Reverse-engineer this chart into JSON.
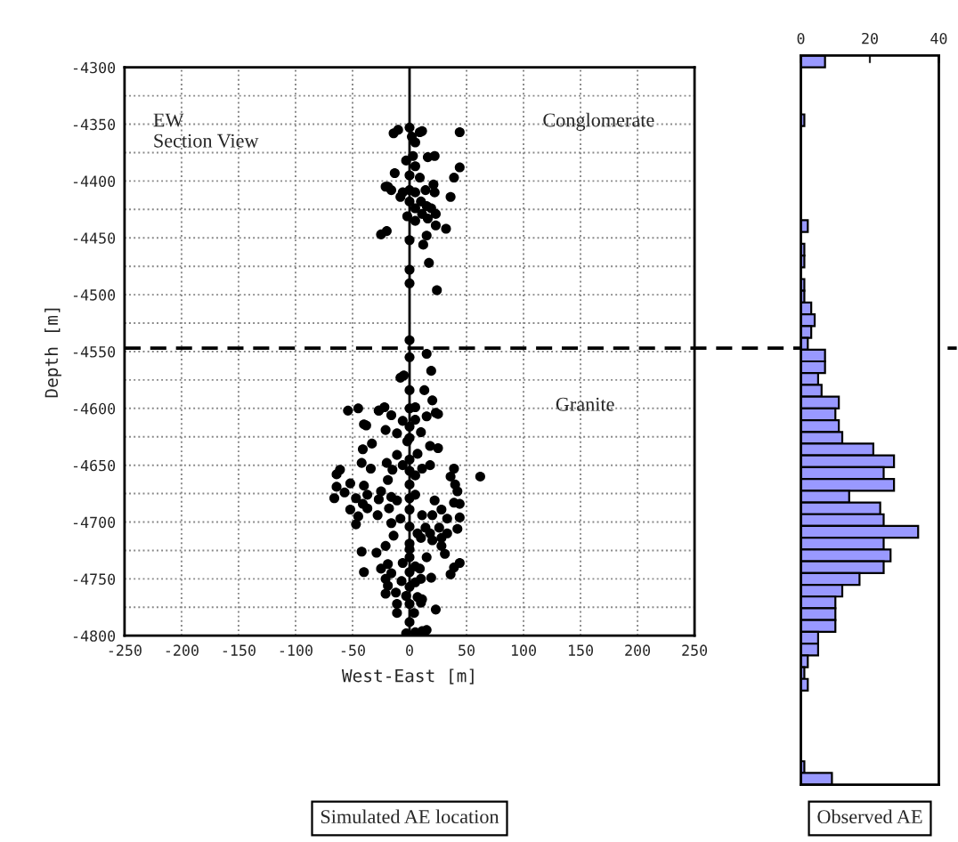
{
  "chart_data": [
    {
      "type": "scatter",
      "xlabel": "West-East [m]",
      "ylabel": "Depth [m]",
      "x": [
        -14,
        -10,
        0,
        2,
        9,
        11,
        5,
        44,
        -3,
        3,
        5,
        16,
        22,
        44,
        39,
        -13,
        0,
        9,
        -19,
        -16,
        -21,
        -6,
        0,
        5,
        14,
        21,
        22,
        36,
        -8,
        0,
        10,
        15,
        5,
        19,
        -2,
        11,
        23,
        16,
        5,
        23,
        32,
        -25,
        -20,
        15,
        0,
        12,
        17,
        0,
        0,
        24,
        0,
        0,
        15,
        19,
        -8,
        -5,
        0,
        13,
        20,
        -54,
        -45,
        -27,
        -22,
        0,
        5,
        23,
        -40,
        25,
        15,
        -27,
        -16,
        5,
        -6,
        0,
        -38,
        -21,
        -11,
        0,
        10,
        -2,
        -33,
        -41,
        18,
        25,
        -11,
        7,
        0,
        -61,
        -64,
        -42,
        -34,
        -20,
        -15,
        -6,
        0,
        11,
        18,
        39,
        62,
        36,
        5,
        -52,
        -40,
        -19,
        0,
        40,
        42,
        -64,
        -57,
        -47,
        -37,
        -25,
        -16,
        -11,
        0,
        5,
        -66,
        -41,
        -27,
        22,
        39,
        -52,
        -37,
        -18,
        0,
        28,
        44,
        -45,
        -28,
        -8,
        11,
        20,
        33,
        44,
        -47,
        -16,
        0,
        14,
        42,
        26,
        7,
        18,
        33,
        -14,
        10,
        20,
        28,
        0,
        -21,
        0,
        28,
        -42,
        -29,
        31,
        0,
        15,
        39,
        44,
        -19,
        -6,
        5,
        9,
        -40,
        -25,
        -16,
        0,
        36,
        -21,
        -7,
        10,
        19,
        -19,
        0,
        5,
        -21,
        -12,
        -3,
        7,
        11,
        -11,
        0,
        10,
        -11,
        4,
        23,
        0,
        11,
        15,
        -3,
        5
      ],
      "values": [
        -4358,
        -4355,
        -4353,
        -4361,
        -4357,
        -4356,
        -4366,
        -4357,
        -4382,
        -4378,
        -4387,
        -4379,
        -4378,
        -4388,
        -4397,
        -4393,
        -4395,
        -4397,
        -4405,
        -4408,
        -4405,
        -4410,
        -4408,
        -4410,
        -4408,
        -4403,
        -4410,
        -4414,
        -4414,
        -4418,
        -4418,
        -4422,
        -4424,
        -4424,
        -4431,
        -4429,
        -4429,
        -4433,
        -4435,
        -4439,
        -4442,
        -4447,
        -4444,
        -4448,
        -4452,
        -4456,
        -4472,
        -4478,
        -4490,
        -4496,
        -4540,
        -4555,
        -4552,
        -4567,
        -4573,
        -4571,
        -4584,
        -4584,
        -4593,
        -4602,
        -4600,
        -4602,
        -4599,
        -4600,
        -4599,
        -4604,
        -4614,
        -4605,
        -4607,
        -4602,
        -4606,
        -4610,
        -4611,
        -4616,
        -4615,
        -4619,
        -4622,
        -4626,
        -4621,
        -4629,
        -4631,
        -4636,
        -4633,
        -4635,
        -4641,
        -4640,
        -4645,
        -4654,
        -4658,
        -4648,
        -4653,
        -4648,
        -4654,
        -4650,
        -4655,
        -4653,
        -4650,
        -4653,
        -4660,
        -4660,
        -4659,
        -4666,
        -4668,
        -4663,
        -4667,
        -4667,
        -4673,
        -4669,
        -4674,
        -4679,
        -4676,
        -4673,
        -4678,
        -4681,
        -4679,
        -4676,
        -4679,
        -4684,
        -4680,
        -4681,
        -4683,
        -4689,
        -4688,
        -4688,
        -4689,
        -4689,
        -4684,
        -4695,
        -4694,
        -4697,
        -4694,
        -4694,
        -4697,
        -4696,
        -4702,
        -4701,
        -4704,
        -4705,
        -4706,
        -4705,
        -4710,
        -4710,
        -4710,
        -4712,
        -4714,
        -4716,
        -4714,
        -4719,
        -4721,
        -4724,
        -4721,
        -4726,
        -4727,
        -4728,
        -4731,
        -4731,
        -4740,
        -4736,
        -4737,
        -4736,
        -4739,
        -4741,
        -4744,
        -4741,
        -4745,
        -4744,
        -4746,
        -4750,
        -4752,
        -4750,
        -4749,
        -4756,
        -4757,
        -4753,
        -4763,
        -4762,
        -4765,
        -4766,
        -4768,
        -4772,
        -4772,
        -4771,
        -4780,
        -4780,
        -4777,
        -4788,
        -4796,
        -4795,
        -4798,
        -4797
      ],
      "color": "#000000",
      "marker": "circle",
      "xlim": [
        -250,
        250
      ],
      "xticks": [
        -250,
        -200,
        -150,
        -100,
        -50,
        0,
        50,
        100,
        150,
        200,
        250
      ],
      "ylim": [
        -4800,
        -4300
      ],
      "yticks": [
        -4800,
        {
          "value": -4775,
          "label": null
        },
        -4750,
        {
          "value": -4725,
          "label": null
        },
        -4700,
        {
          "value": -4675,
          "label": null
        },
        -4650,
        {
          "value": -4625,
          "label": null
        },
        -4600,
        {
          "value": -4575,
          "label": null
        },
        -4550,
        {
          "value": -4525,
          "label": null
        },
        -4500,
        {
          "value": -4475,
          "label": null
        },
        -4450,
        {
          "value": -4425,
          "label": null
        },
        -4400,
        {
          "value": -4375,
          "label": null
        },
        -4350,
        {
          "value": -4325,
          "label": null
        },
        -4300
      ],
      "grid": true,
      "ref_lines": [
        {
          "axis": "y",
          "value": -4547,
          "color": "#000000",
          "line_style": "dashed"
        },
        {
          "axis": "x",
          "value": 0,
          "color": "#000000",
          "line_style": "solid"
        }
      ],
      "annotations": [
        "EW\nSection View",
        "Conglomerate",
        "Granite",
        "Simulated AE location"
      ]
    },
    {
      "type": "bar",
      "orientation": "horizontal",
      "tick_labels": "x",
      "categories": [
        null,
        null,
        null,
        null,
        null,
        null,
        null,
        null,
        null,
        null,
        null,
        null,
        null,
        null,
        null,
        null,
        null,
        null,
        null,
        null,
        null,
        null,
        null,
        null,
        null,
        null,
        null,
        null,
        null,
        null,
        null,
        null,
        null,
        null,
        null,
        null,
        null,
        null,
        null,
        null,
        null,
        null,
        null,
        null,
        null,
        null,
        null,
        null,
        null,
        null,
        null,
        null,
        null,
        null,
        null,
        null,
        null,
        null,
        null,
        null,
        null,
        null
      ],
      "values": [
        7,
        0,
        0,
        0,
        0,
        1,
        0,
        0,
        0,
        0,
        0,
        0,
        0,
        0,
        2,
        0,
        1,
        1,
        0,
        1,
        1,
        3,
        4,
        3,
        2,
        7,
        7,
        5,
        6,
        11,
        10,
        11,
        12,
        21,
        27,
        24,
        27,
        14,
        23,
        24,
        34,
        24,
        26,
        24,
        17,
        12,
        10,
        10,
        10,
        5,
        5,
        2,
        1,
        2,
        0,
        0,
        0,
        0,
        0,
        0,
        1,
        9
      ],
      "color": "#9999ff",
      "xlim": [
        0,
        40
      ],
      "xticks": [
        0,
        20,
        40
      ],
      "annotations": [
        "Observed AE"
      ]
    }
  ]
}
